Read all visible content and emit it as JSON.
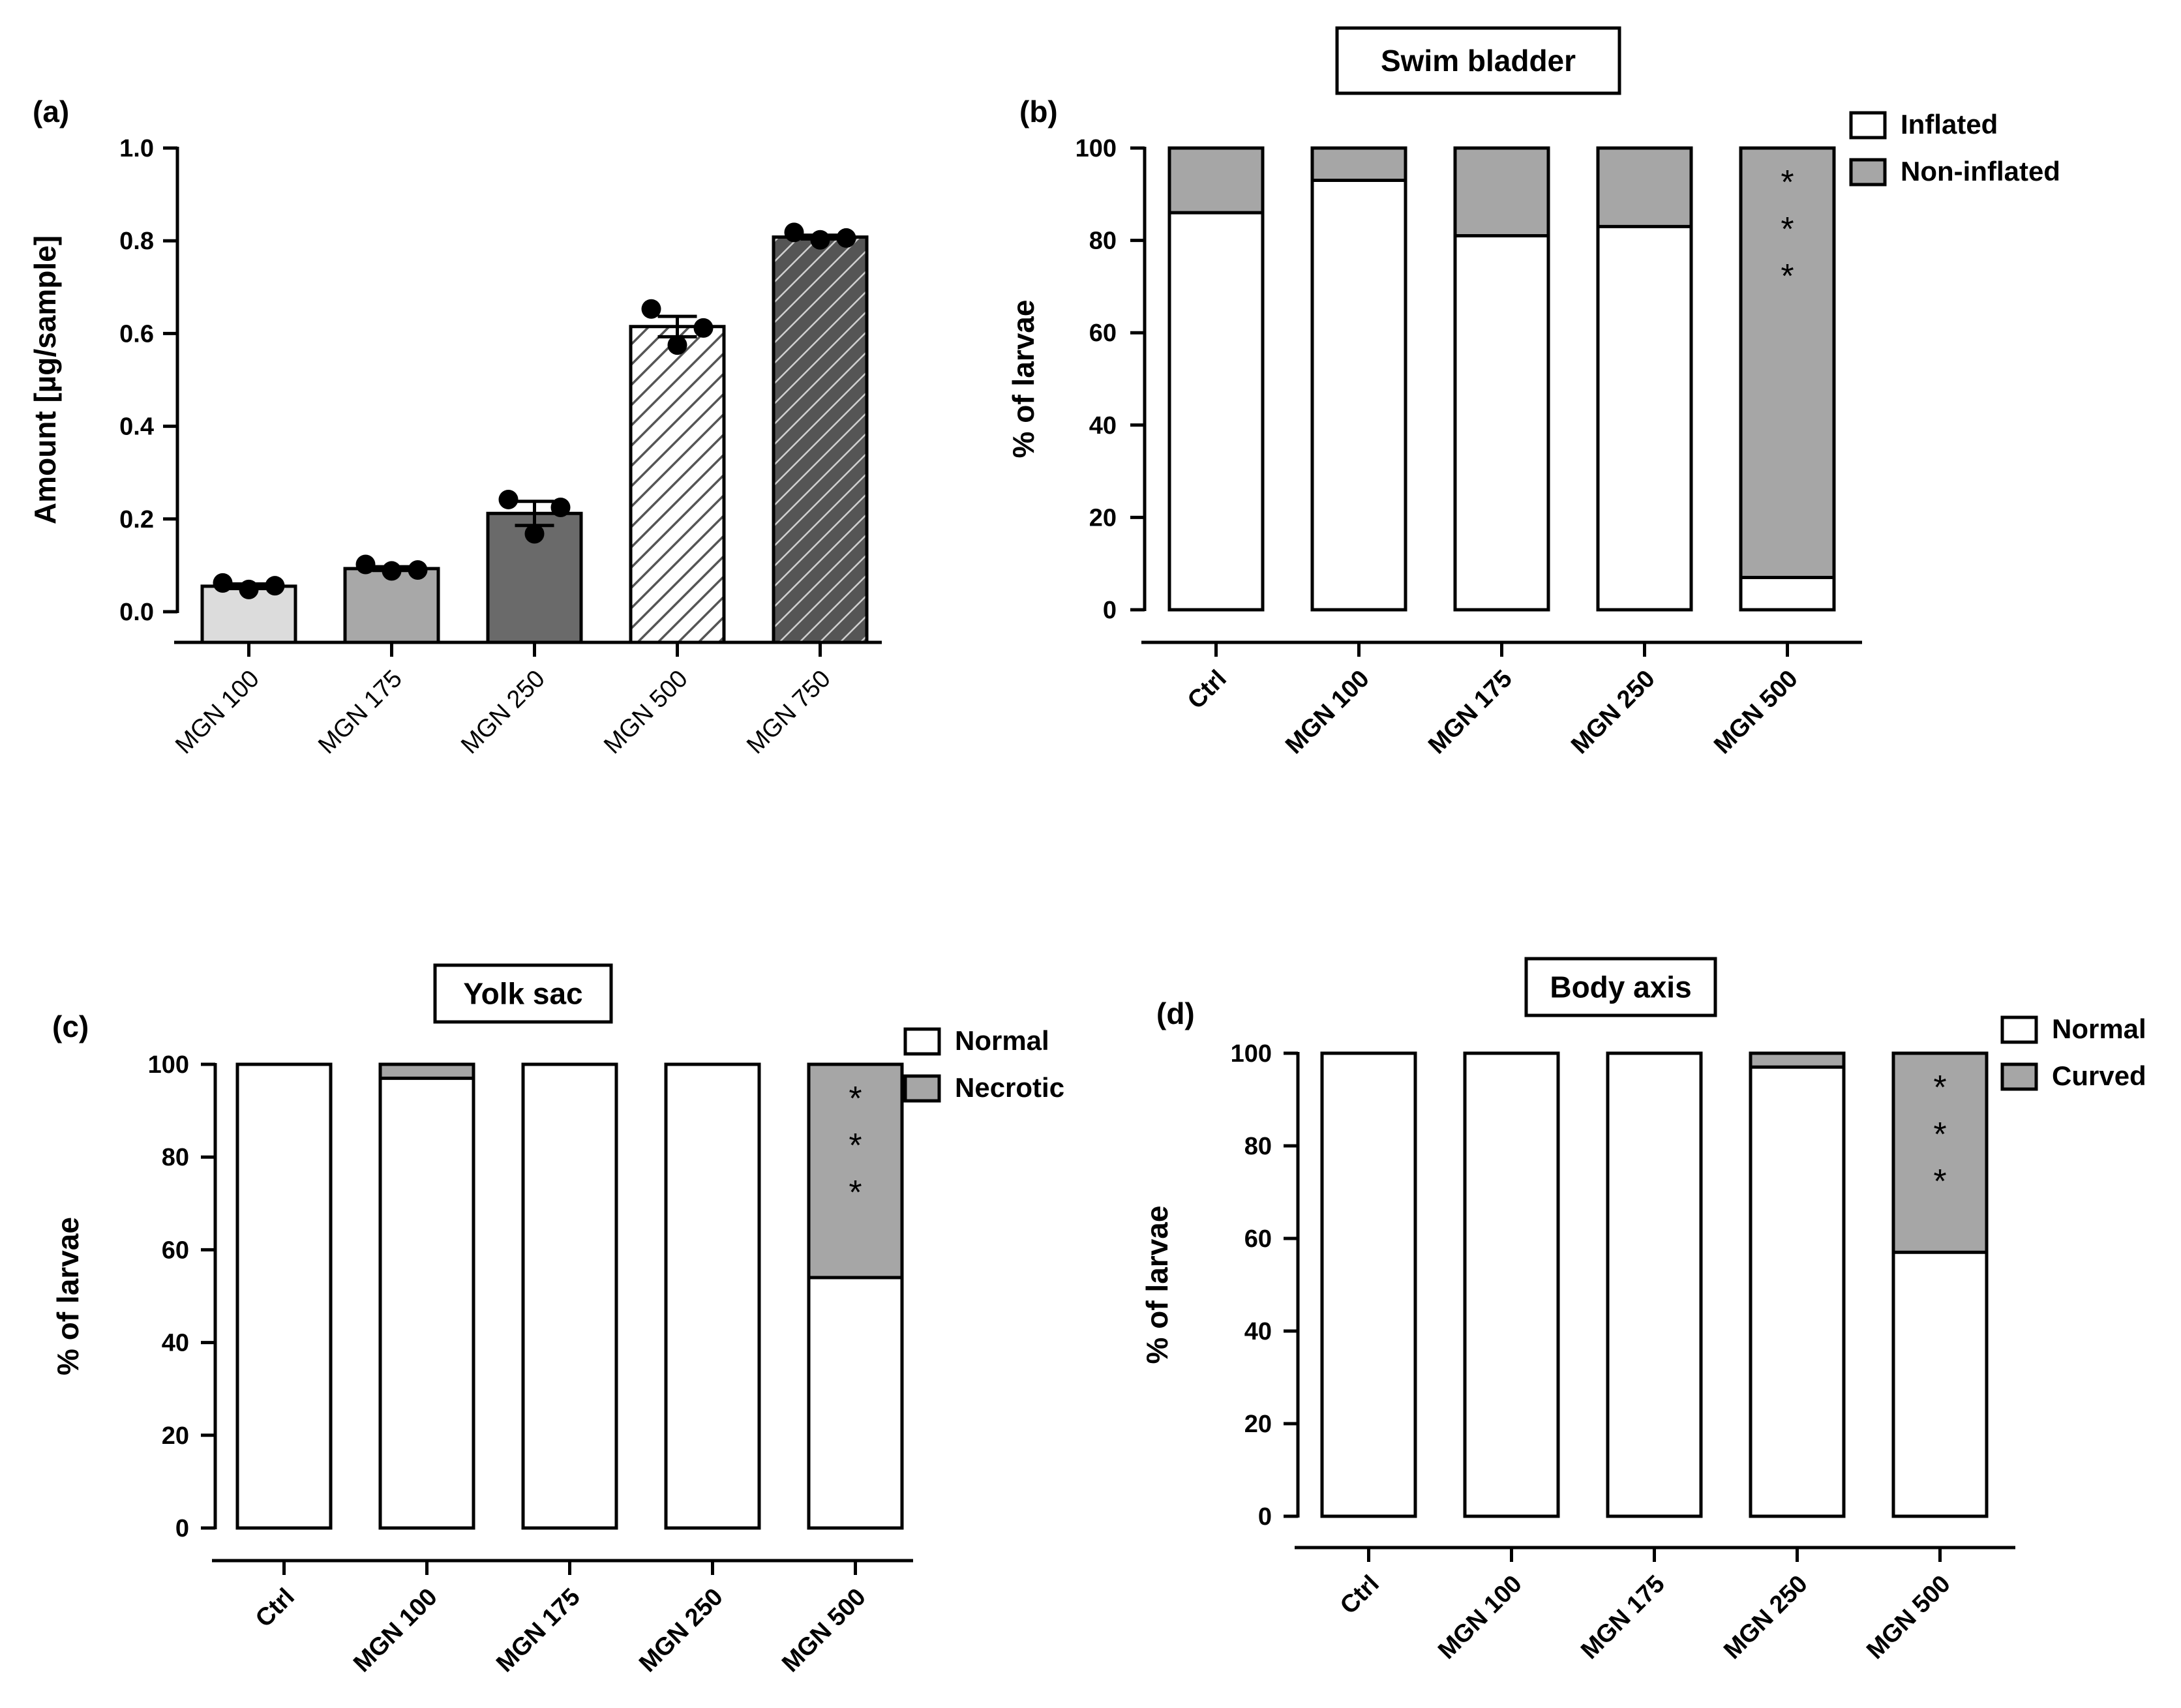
{
  "chart_data": [
    {
      "panel": "(a)",
      "type": "bar",
      "title": "",
      "xlabel": "",
      "ylabel": "Amount [µg/sample]",
      "ylim": [
        0,
        1.0
      ],
      "yticks": [
        "0.0",
        "0.2",
        "0.4",
        "0.6",
        "0.8",
        "1.0"
      ],
      "categories": [
        "MGN 100",
        "MGN 175",
        "MGN 250",
        "MGN 500",
        "MGN 750"
      ],
      "values": [
        0.055,
        0.093,
        0.212,
        0.615,
        0.808
      ],
      "errors": [
        0.005,
        0.004,
        0.026,
        0.022,
        0.004
      ],
      "points": [
        [
          0.062,
          0.048,
          0.056
        ],
        [
          0.102,
          0.088,
          0.09
        ],
        [
          0.242,
          0.168,
          0.225
        ],
        [
          0.653,
          0.575,
          0.612
        ],
        [
          0.818,
          0.802,
          0.806
        ]
      ],
      "fills": [
        "#dcdcdc",
        "#a8a8a8",
        "#6a6a6a",
        "hatch-light",
        "hatch-dark"
      ]
    },
    {
      "panel": "(b)",
      "type": "bar",
      "stacked": true,
      "title": "Swim bladder",
      "xlabel": "",
      "ylabel": "% of larvae",
      "ylim": [
        0,
        100
      ],
      "yticks": [
        "0",
        "20",
        "40",
        "60",
        "80",
        "100"
      ],
      "categories": [
        "Ctrl",
        "MGN 100",
        "MGN 175",
        "MGN 250",
        "MGN 500"
      ],
      "series": [
        {
          "name": "Inflated",
          "color": "#ffffff",
          "values": [
            86,
            93,
            81,
            83,
            7
          ]
        },
        {
          "name": "Non-inflated",
          "color": "#a6a6a6",
          "values": [
            14,
            7,
            19,
            17,
            93
          ]
        }
      ],
      "annotations": [
        {
          "category": "MGN 500",
          "text": "*"
        }
      ],
      "legend": "top-right"
    },
    {
      "panel": "(c)",
      "type": "bar",
      "stacked": true,
      "title": "Yolk sac",
      "xlabel": "",
      "ylabel": "% of larvae",
      "ylim": [
        0,
        100
      ],
      "yticks": [
        "0",
        "20",
        "40",
        "60",
        "80",
        "100"
      ],
      "categories": [
        "Ctrl",
        "MGN 100",
        "MGN 175",
        "MGN 250",
        "MGN 500"
      ],
      "series": [
        {
          "name": "Normal",
          "color": "#ffffff",
          "values": [
            100,
            97,
            100,
            100,
            54
          ]
        },
        {
          "name": "Necrotic",
          "color": "#a6a6a6",
          "values": [
            0,
            3,
            0,
            0,
            46
          ]
        }
      ],
      "annotations": [
        {
          "category": "MGN 500",
          "text": "*"
        }
      ],
      "legend": "top-right"
    },
    {
      "panel": "(d)",
      "type": "bar",
      "stacked": true,
      "title": "Body axis",
      "xlabel": "",
      "ylabel": "% of larvae",
      "ylim": [
        0,
        100
      ],
      "yticks": [
        "0",
        "20",
        "40",
        "60",
        "80",
        "100"
      ],
      "categories": [
        "Ctrl",
        "MGN 100",
        "MGN 175",
        "MGN 250",
        "MGN 500"
      ],
      "series": [
        {
          "name": "Normal",
          "color": "#ffffff",
          "values": [
            100,
            100,
            100,
            97,
            57
          ]
        },
        {
          "name": "Curved",
          "color": "#a6a6a6",
          "values": [
            0,
            0,
            0,
            3,
            43
          ]
        }
      ],
      "annotations": [
        {
          "category": "MGN 500",
          "text": "*"
        }
      ],
      "legend": "top-right"
    }
  ]
}
